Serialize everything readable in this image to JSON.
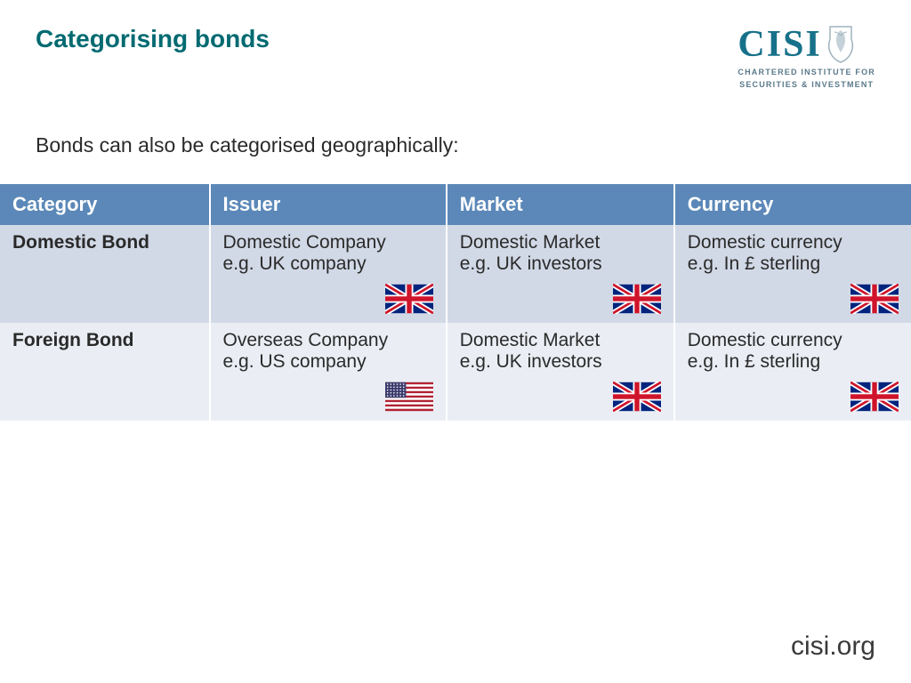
{
  "title": "Categorising bonds",
  "logo": {
    "text": "CISI",
    "subline1": "CHARTERED INSTITUTE FOR",
    "subline2": "SECURITIES & INVESTMENT"
  },
  "intro": "Bonds can also be categorised geographically:",
  "table": {
    "header_bg": "#5b88b8",
    "header_text_color": "#ffffff",
    "row_colors": [
      "#d2d9e6",
      "#eaeef4"
    ],
    "columns": [
      "Category",
      "Issuer",
      "Market",
      "Currency"
    ],
    "rows": [
      {
        "category": "Domestic Bond",
        "cells": [
          {
            "line1": "Domestic Company",
            "line2": "e.g. UK company",
            "flag": "uk"
          },
          {
            "line1": "Domestic Market",
            "line2": "e.g. UK investors",
            "flag": "uk"
          },
          {
            "line1": "Domestic currency",
            "line2": "e.g. In £ sterling",
            "flag": "uk"
          }
        ]
      },
      {
        "category": "Foreign Bond",
        "cells": [
          {
            "line1": "Overseas Company",
            "line2": "e.g. US company",
            "flag": "us"
          },
          {
            "line1": "Domestic Market",
            "line2": "e.g. UK investors",
            "flag": "uk"
          },
          {
            "line1": "Domestic currency",
            "line2": "e.g. In £ sterling",
            "flag": "uk"
          }
        ]
      }
    ]
  },
  "footer": "cisi.org",
  "colors": {
    "title": "#006a71",
    "body_text": "#2a2a2a",
    "logo_main": "#17718a",
    "logo_sub": "#5a7a8a"
  }
}
